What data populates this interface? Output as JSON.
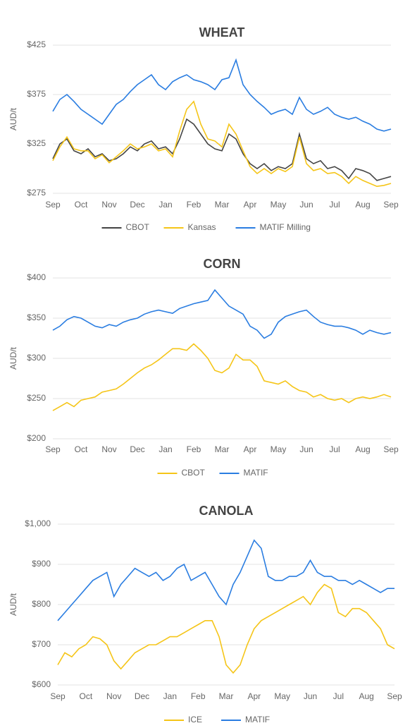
{
  "chart_data": [
    {
      "type": "line",
      "title": "WHEAT",
      "ylabel": "AUD/t",
      "grid": true,
      "categories": [
        "Sep",
        null,
        null,
        null,
        "Oct",
        null,
        null,
        null,
        "Nov",
        null,
        null,
        null,
        "Dec",
        null,
        null,
        null,
        "Jan",
        null,
        null,
        null,
        "Feb",
        null,
        null,
        null,
        "Mar",
        null,
        null,
        null,
        "Apr",
        null,
        null,
        null,
        "May",
        null,
        null,
        null,
        "Jun",
        null,
        null,
        null,
        "Jul",
        null,
        null,
        null,
        "Aug",
        null,
        null,
        null,
        "Sep"
      ],
      "ylim": [
        275,
        425
      ],
      "yticks": [
        {
          "value": 275,
          "label": "$275"
        },
        {
          "value": 325,
          "label": "$325"
        },
        {
          "value": 375,
          "label": "$375"
        },
        {
          "value": 425,
          "label": "$425"
        }
      ],
      "series": [
        {
          "name": "CBOT",
          "color": "#444444",
          "values": [
            310,
            325,
            330,
            318,
            315,
            320,
            312,
            315,
            308,
            310,
            315,
            322,
            318,
            325,
            328,
            320,
            322,
            315,
            330,
            350,
            345,
            335,
            325,
            320,
            318,
            335,
            330,
            315,
            305,
            300,
            305,
            298,
            302,
            300,
            305,
            335,
            310,
            305,
            308,
            300,
            302,
            298,
            290,
            300,
            298,
            295,
            288,
            290,
            292
          ]
        },
        {
          "name": "Kansas",
          "color": "#f5c518",
          "values": [
            308,
            322,
            332,
            320,
            318,
            318,
            310,
            314,
            306,
            312,
            318,
            325,
            320,
            322,
            325,
            318,
            320,
            312,
            338,
            360,
            368,
            345,
            330,
            328,
            322,
            345,
            335,
            318,
            302,
            295,
            300,
            295,
            300,
            297,
            302,
            332,
            305,
            298,
            300,
            295,
            296,
            292,
            285,
            292,
            288,
            285,
            282,
            283,
            285
          ]
        },
        {
          "name": "MATIF Milling",
          "color": "#2a7de1",
          "values": [
            358,
            370,
            375,
            368,
            360,
            355,
            350,
            345,
            355,
            365,
            370,
            378,
            385,
            390,
            395,
            385,
            380,
            388,
            392,
            395,
            390,
            388,
            385,
            380,
            390,
            392,
            410,
            385,
            375,
            368,
            362,
            355,
            358,
            360,
            355,
            372,
            360,
            355,
            358,
            362,
            355,
            352,
            350,
            352,
            348,
            345,
            340,
            338,
            340
          ]
        }
      ]
    },
    {
      "type": "line",
      "title": "CORN",
      "ylabel": "AUD/t",
      "grid": true,
      "categories": [
        "Sep",
        null,
        null,
        null,
        "Oct",
        null,
        null,
        null,
        "Nov",
        null,
        null,
        null,
        "Dec",
        null,
        null,
        null,
        "Jan",
        null,
        null,
        null,
        "Feb",
        null,
        null,
        null,
        "Mar",
        null,
        null,
        null,
        "Apr",
        null,
        null,
        null,
        "May",
        null,
        null,
        null,
        "Jun",
        null,
        null,
        null,
        "Jul",
        null,
        null,
        null,
        "Aug",
        null,
        null,
        null,
        "Sep"
      ],
      "ylim": [
        200,
        400
      ],
      "yticks": [
        {
          "value": 200,
          "label": "$200"
        },
        {
          "value": 250,
          "label": "$250"
        },
        {
          "value": 300,
          "label": "$300"
        },
        {
          "value": 350,
          "label": "$350"
        },
        {
          "value": 400,
          "label": "$400"
        }
      ],
      "series": [
        {
          "name": "CBOT",
          "color": "#f5c518",
          "values": [
            235,
            240,
            245,
            240,
            248,
            250,
            252,
            258,
            260,
            262,
            268,
            275,
            282,
            288,
            292,
            298,
            305,
            312,
            312,
            310,
            318,
            310,
            300,
            285,
            282,
            288,
            305,
            298,
            298,
            290,
            272,
            270,
            268,
            272,
            265,
            260,
            258,
            252,
            255,
            250,
            248,
            250,
            245,
            250,
            252,
            250,
            252,
            255,
            252
          ]
        },
        {
          "name": "MATIF",
          "color": "#2a7de1",
          "values": [
            335,
            340,
            348,
            352,
            350,
            345,
            340,
            338,
            342,
            340,
            345,
            348,
            350,
            355,
            358,
            360,
            358,
            356,
            362,
            365,
            368,
            370,
            372,
            385,
            375,
            365,
            360,
            355,
            340,
            335,
            325,
            330,
            345,
            352,
            355,
            358,
            360,
            352,
            345,
            342,
            340,
            340,
            338,
            335,
            330,
            335,
            332,
            330,
            332
          ]
        }
      ]
    },
    {
      "type": "line",
      "title": "CANOLA",
      "ylabel": "AUD/t",
      "grid": true,
      "categories": [
        "Sep",
        null,
        null,
        null,
        "Oct",
        null,
        null,
        null,
        "Nov",
        null,
        null,
        null,
        "Dec",
        null,
        null,
        null,
        "Jan",
        null,
        null,
        null,
        "Feb",
        null,
        null,
        null,
        "Mar",
        null,
        null,
        null,
        "Apr",
        null,
        null,
        null,
        "May",
        null,
        null,
        null,
        "Jun",
        null,
        null,
        null,
        "Jul",
        null,
        null,
        null,
        "Aug",
        null,
        null,
        null,
        "Sep"
      ],
      "ylim": [
        600,
        1000
      ],
      "yticks": [
        {
          "value": 600,
          "label": "$600"
        },
        {
          "value": 700,
          "label": "$700"
        },
        {
          "value": 800,
          "label": "$800"
        },
        {
          "value": 900,
          "label": "$900"
        },
        {
          "value": 1000,
          "label": "$1,000"
        }
      ],
      "series": [
        {
          "name": "ICE",
          "color": "#f5c518",
          "values": [
            650,
            680,
            670,
            690,
            700,
            720,
            715,
            700,
            660,
            640,
            660,
            680,
            690,
            700,
            700,
            710,
            720,
            720,
            730,
            740,
            750,
            760,
            760,
            720,
            650,
            630,
            650,
            700,
            740,
            760,
            770,
            780,
            790,
            800,
            810,
            820,
            800,
            830,
            850,
            840,
            780,
            770,
            790,
            790,
            780,
            760,
            740,
            700,
            690
          ]
        },
        {
          "name": "MATIF",
          "color": "#2a7de1",
          "values": [
            760,
            780,
            800,
            820,
            840,
            860,
            870,
            880,
            820,
            850,
            870,
            890,
            880,
            870,
            880,
            860,
            870,
            890,
            900,
            860,
            870,
            880,
            850,
            820,
            800,
            850,
            880,
            920,
            960,
            940,
            870,
            860,
            860,
            870,
            870,
            880,
            910,
            880,
            870,
            870,
            860,
            860,
            850,
            860,
            850,
            840,
            830,
            840,
            840
          ]
        }
      ]
    }
  ]
}
